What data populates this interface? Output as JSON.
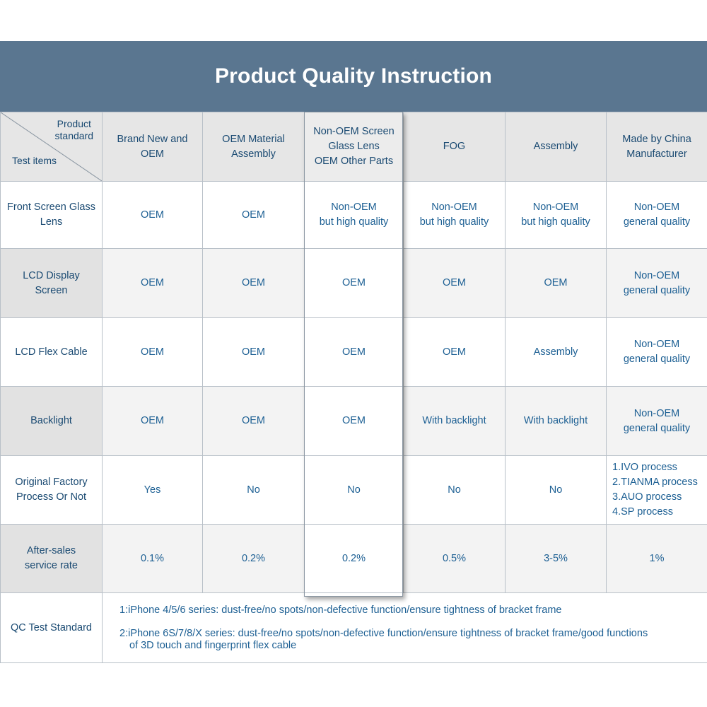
{
  "title": "Product Quality Instruction",
  "corner": {
    "top": [
      "Product",
      "standard"
    ],
    "bottom": "Test items"
  },
  "columns": [
    [
      "Brand New and",
      "OEM"
    ],
    [
      "OEM Material",
      "Assembly"
    ],
    [
      "Non-OEM Screen",
      "Glass Lens",
      "OEM Other Parts"
    ],
    [
      "FOG"
    ],
    [
      "Assembly"
    ],
    [
      "Made by China",
      "Manufacturer"
    ]
  ],
  "rows": [
    {
      "label": [
        "Front Screen Glass",
        "Lens"
      ],
      "cells": [
        [
          "OEM"
        ],
        [
          "OEM"
        ],
        [
          "Non-OEM",
          "but high quality"
        ],
        [
          "Non-OEM",
          "but high quality"
        ],
        [
          "Non-OEM",
          "but high quality"
        ],
        [
          "Non-OEM",
          "general quality"
        ]
      ]
    },
    {
      "label": [
        "LCD Display",
        "Screen"
      ],
      "cells": [
        [
          "OEM"
        ],
        [
          "OEM"
        ],
        [
          "OEM"
        ],
        [
          "OEM"
        ],
        [
          "OEM"
        ],
        [
          "Non-OEM",
          "general quality"
        ]
      ]
    },
    {
      "label": [
        "LCD Flex Cable"
      ],
      "cells": [
        [
          "OEM"
        ],
        [
          "OEM"
        ],
        [
          "OEM"
        ],
        [
          "OEM"
        ],
        [
          "Assembly"
        ],
        [
          "Non-OEM",
          "general quality"
        ]
      ]
    },
    {
      "label": [
        "Backlight"
      ],
      "cells": [
        [
          "OEM"
        ],
        [
          "OEM"
        ],
        [
          "OEM"
        ],
        [
          "With backlight"
        ],
        [
          "With backlight"
        ],
        [
          "Non-OEM",
          "general quality"
        ]
      ]
    },
    {
      "label": [
        "Original Factory",
        "Process Or Not"
      ],
      "cells": [
        [
          "Yes"
        ],
        [
          "No"
        ],
        [
          "No"
        ],
        [
          "No"
        ],
        [
          "No"
        ],
        [
          "1.IVO process",
          "2.TIANMA process",
          "3.AUO process",
          "4.SP process"
        ]
      ]
    },
    {
      "label": [
        "After-sales",
        "service rate"
      ],
      "cells": [
        [
          "0.1%"
        ],
        [
          "0.2%"
        ],
        [
          "0.2%"
        ],
        [
          "0.5%"
        ],
        [
          "3-5%"
        ],
        [
          "1%"
        ]
      ]
    }
  ],
  "qc": {
    "label": "QC Test Standard",
    "line1": "1:iPhone 4/5/6 series: dust-free/no spots/non-defective function/ensure tightness of bracket frame",
    "line2a": "2:iPhone 6S/7/8/X series: dust-free/no spots/non-defective function/ensure tightness of bracket frame/good functions",
    "line2b": "of 3D touch and fingerprint flex cable"
  }
}
